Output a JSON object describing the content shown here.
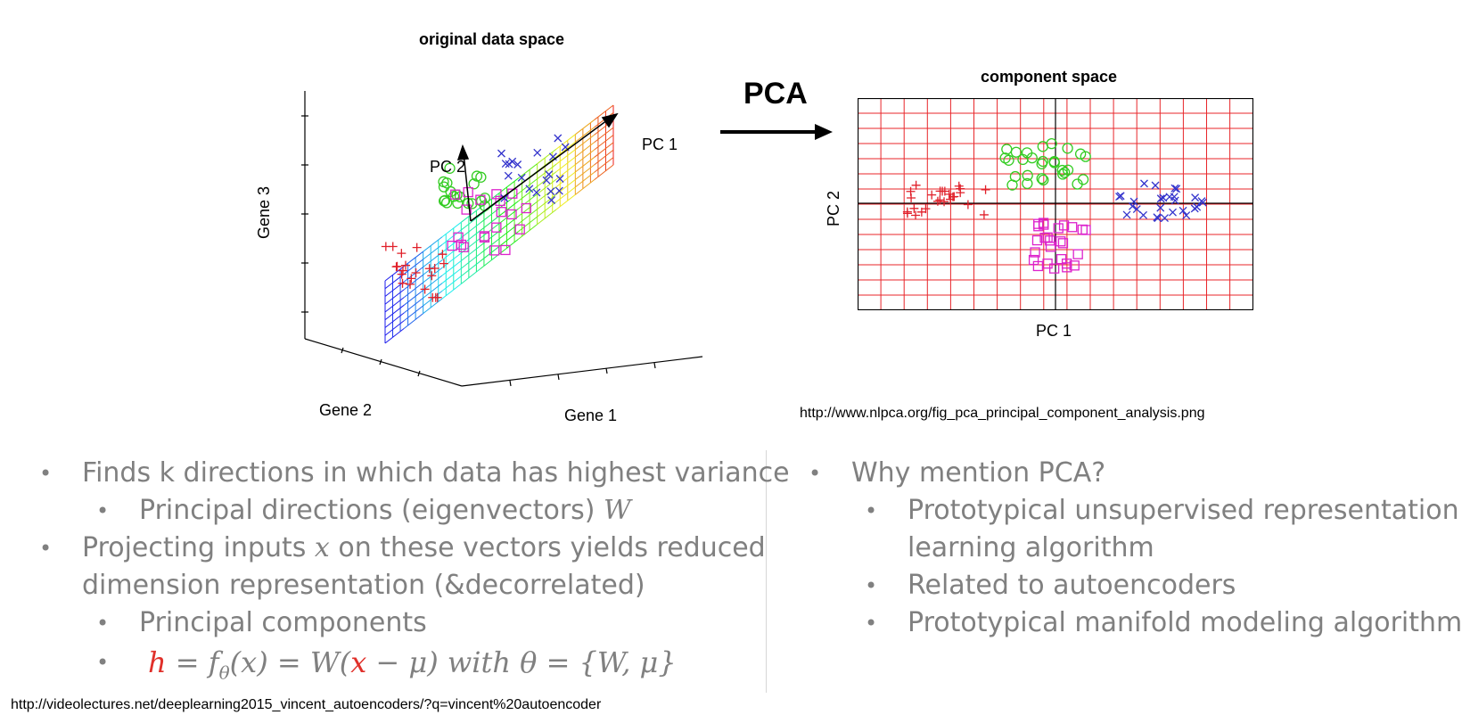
{
  "figure_left": {
    "title": "original data space",
    "axis_x": "Gene 1",
    "axis_y": "Gene 2",
    "axis_z": "Gene 3",
    "pc1_label": "PC 1",
    "pc2_label": "PC 2"
  },
  "arrow_label": "PCA",
  "figure_right": {
    "title": "component space",
    "xlabel": "PC 1",
    "ylabel": "PC 2"
  },
  "figure_source": "http://www.nlpca.org/fig_pca_principal_component_analysis.png",
  "left_bullets": {
    "b1": "Finds k directions in which data has highest variance",
    "b1_sub": "Principal directions (eigenvectors) ",
    "b1_sub_var": "W",
    "b2_pre": "Projecting inputs ",
    "b2_var": "x",
    "b2_post": " on these vectors yields reduced",
    "b2_line2": "dimension representation (&decorrelated)",
    "b2_sub1": "Principal components",
    "formula": {
      "h": "h",
      "eq1": " = ",
      "f": "f",
      "theta_sub": "θ",
      "arg": "(x)",
      "eq2": " = W(",
      "x": "x",
      "rest": " − μ) with θ = {W, μ}"
    }
  },
  "right_bullets": {
    "b1": "Why mention PCA?",
    "s1_line1": "Prototypical unsupervised representation",
    "s1_line2": "learning algorithm",
    "s2": "Related to autoencoders",
    "s3": "Prototypical manifold modeling algorithm"
  },
  "footer_source": "http://videolectures.net/deeplearning2015_vincent_autoencoders/?q=vincent%20autoencoder",
  "colors": {
    "bullet_text": "#808080",
    "highlight": "#e0302a",
    "grid": "#e8262a",
    "cluster_red": "#e0202a",
    "cluster_green": "#33cc22",
    "cluster_magenta": "#dd22cc",
    "cluster_blue": "#3333cc"
  }
}
